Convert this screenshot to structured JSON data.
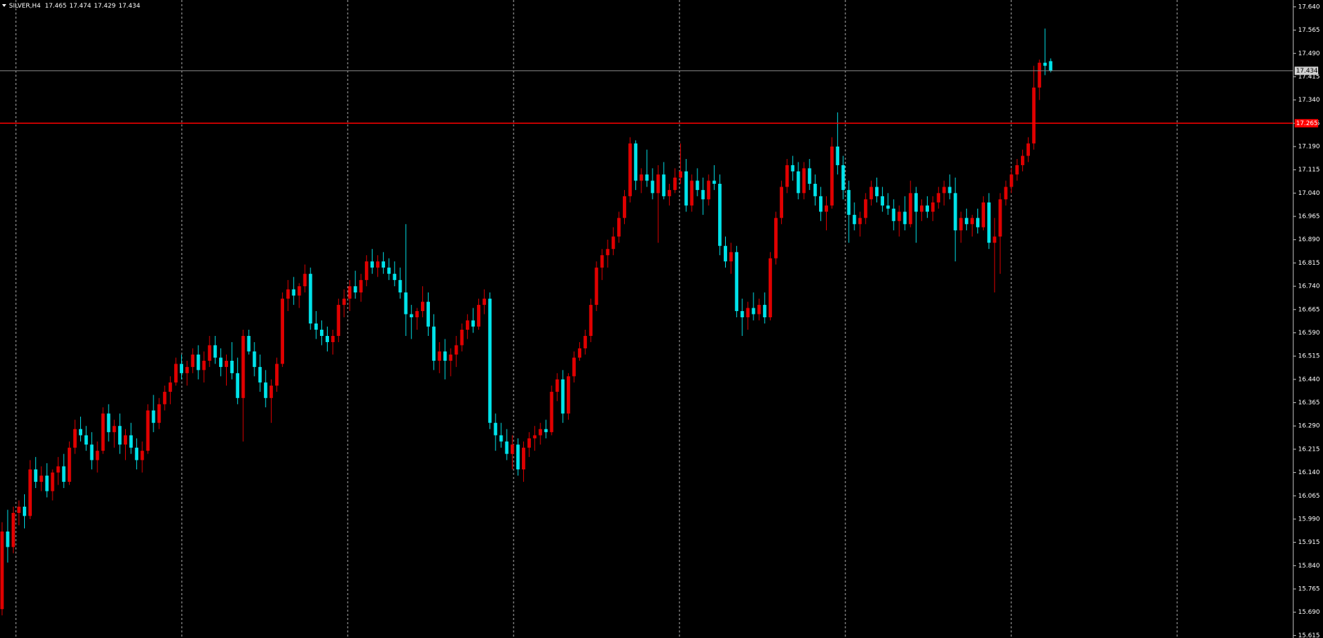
{
  "chart_data": {
    "type": "candlestick",
    "title": "SILVER,H4",
    "up_color": "#e00000",
    "down_color": "#00e3ea",
    "background": "#000000",
    "ylim": [
      15.607,
      17.662
    ],
    "yticks": [
      {
        "value": 17.64,
        "label": "17.640"
      },
      17.565,
      {
        "value": 17.49,
        "label": "17.490"
      },
      17.415,
      {
        "value": 17.34,
        "label": "17.340"
      },
      17.265,
      {
        "value": 17.19,
        "label": "17.190"
      },
      17.115,
      {
        "value": 17.04,
        "label": "17.040"
      },
      16.965,
      {
        "value": 16.89,
        "label": "16.890"
      },
      16.815,
      {
        "value": 16.74,
        "label": "16.740"
      },
      16.665,
      {
        "value": 16.59,
        "label": "16.590"
      },
      16.515,
      {
        "value": 16.44,
        "label": "16.440"
      },
      16.365,
      {
        "value": 16.29,
        "label": "16.290"
      },
      16.215,
      {
        "value": 16.14,
        "label": "16.140"
      },
      16.065,
      {
        "value": 15.99,
        "label": "15.990"
      },
      15.915,
      {
        "value": 15.84,
        "label": "15.840"
      },
      15.765,
      {
        "value": 15.69,
        "label": "15.690"
      },
      15.615
    ],
    "level_line": {
      "value": 17.265,
      "color": "#ff0000"
    },
    "candles": [
      [
        15.7,
        15.98,
        15.68,
        15.95
      ],
      [
        15.95,
        16.02,
        15.85,
        15.9
      ],
      [
        15.9,
        16.03,
        15.88,
        16.01
      ],
      [
        16.01,
        16.05,
        15.97,
        16.03
      ],
      [
        16.03,
        16.07,
        15.96,
        16.0
      ],
      [
        16.0,
        16.18,
        15.99,
        16.15
      ],
      [
        16.15,
        16.19,
        16.09,
        16.11
      ],
      [
        16.11,
        16.16,
        16.08,
        16.13
      ],
      [
        16.13,
        16.17,
        16.06,
        16.08
      ],
      [
        16.08,
        16.15,
        16.05,
        16.14
      ],
      [
        16.14,
        16.19,
        16.1,
        16.16
      ],
      [
        16.16,
        16.2,
        16.09,
        16.11
      ],
      [
        16.11,
        16.24,
        16.1,
        16.22
      ],
      [
        16.22,
        16.31,
        16.2,
        16.28
      ],
      [
        16.28,
        16.32,
        16.24,
        16.26
      ],
      [
        16.26,
        16.29,
        16.21,
        16.23
      ],
      [
        16.23,
        16.27,
        16.15,
        16.18
      ],
      [
        16.18,
        16.24,
        16.14,
        16.21
      ],
      [
        16.21,
        16.35,
        16.2,
        16.33
      ],
      [
        16.33,
        16.36,
        16.24,
        16.27
      ],
      [
        16.27,
        16.31,
        16.22,
        16.29
      ],
      [
        16.29,
        16.33,
        16.2,
        16.23
      ],
      [
        16.23,
        16.28,
        16.18,
        16.26
      ],
      [
        16.26,
        16.3,
        16.2,
        16.22
      ],
      [
        16.22,
        16.25,
        16.15,
        16.18
      ],
      [
        16.18,
        16.24,
        16.14,
        16.21
      ],
      [
        16.21,
        16.36,
        16.2,
        16.34
      ],
      [
        16.34,
        16.39,
        16.27,
        16.3
      ],
      [
        16.3,
        16.38,
        16.28,
        16.36
      ],
      [
        16.36,
        16.42,
        16.34,
        16.4
      ],
      [
        16.4,
        16.45,
        16.36,
        16.43
      ],
      [
        16.43,
        16.51,
        16.42,
        16.49
      ],
      [
        16.49,
        16.52,
        16.44,
        16.46
      ],
      [
        16.46,
        16.5,
        16.42,
        16.48
      ],
      [
        16.48,
        16.54,
        16.46,
        16.52
      ],
      [
        16.52,
        16.55,
        16.44,
        16.47
      ],
      [
        16.47,
        16.53,
        16.43,
        16.5
      ],
      [
        16.5,
        16.58,
        16.48,
        16.55
      ],
      [
        16.55,
        16.58,
        16.49,
        16.51
      ],
      [
        16.51,
        16.54,
        16.45,
        16.48
      ],
      [
        16.48,
        16.52,
        16.42,
        16.5
      ],
      [
        16.5,
        16.56,
        16.44,
        16.46
      ],
      [
        16.46,
        16.51,
        16.36,
        16.38
      ],
      [
        16.38,
        16.6,
        16.24,
        16.58
      ],
      [
        16.58,
        16.6,
        16.52,
        16.53
      ],
      [
        16.53,
        16.56,
        16.45,
        16.48
      ],
      [
        16.48,
        16.52,
        16.4,
        16.43
      ],
      [
        16.43,
        16.47,
        16.35,
        16.38
      ],
      [
        16.38,
        16.44,
        16.3,
        16.42
      ],
      [
        16.42,
        16.51,
        16.4,
        16.49
      ],
      [
        16.49,
        16.72,
        16.48,
        16.7
      ],
      [
        16.7,
        16.76,
        16.66,
        16.73
      ],
      [
        16.73,
        16.77,
        16.68,
        16.71
      ],
      [
        16.71,
        16.75,
        16.67,
        16.74
      ],
      [
        16.74,
        16.81,
        16.72,
        16.78
      ],
      [
        16.78,
        16.8,
        16.6,
        16.62
      ],
      [
        16.62,
        16.66,
        16.57,
        16.6
      ],
      [
        16.6,
        16.63,
        16.55,
        16.58
      ],
      [
        16.58,
        16.61,
        16.53,
        16.56
      ],
      [
        16.56,
        16.6,
        16.52,
        16.58
      ],
      [
        16.58,
        16.7,
        16.56,
        16.68
      ],
      [
        16.68,
        16.73,
        16.64,
        16.7
      ],
      [
        16.7,
        16.76,
        16.66,
        16.74
      ],
      [
        16.74,
        16.79,
        16.7,
        16.72
      ],
      [
        16.72,
        16.78,
        16.69,
        16.76
      ],
      [
        16.76,
        16.84,
        16.74,
        16.82
      ],
      [
        16.82,
        16.86,
        16.78,
        16.8
      ],
      [
        16.8,
        16.84,
        16.77,
        16.82
      ],
      [
        16.82,
        16.85,
        16.78,
        16.8
      ],
      [
        16.8,
        16.83,
        16.76,
        16.78
      ],
      [
        16.78,
        16.82,
        16.74,
        16.76
      ],
      [
        16.76,
        16.8,
        16.7,
        16.72
      ],
      [
        16.72,
        16.94,
        16.58,
        16.65
      ],
      [
        16.65,
        16.68,
        16.57,
        16.64
      ],
      [
        16.64,
        16.67,
        16.6,
        16.66
      ],
      [
        16.66,
        16.74,
        16.64,
        16.69
      ],
      [
        16.69,
        16.72,
        16.58,
        16.61
      ],
      [
        16.61,
        16.65,
        16.47,
        16.5
      ],
      [
        16.5,
        16.56,
        16.46,
        16.53
      ],
      [
        16.53,
        16.57,
        16.44,
        16.5
      ],
      [
        16.5,
        16.54,
        16.45,
        16.52
      ],
      [
        16.52,
        16.58,
        16.48,
        16.55
      ],
      [
        16.55,
        16.62,
        16.53,
        16.6
      ],
      [
        16.6,
        16.65,
        16.57,
        16.63
      ],
      [
        16.63,
        16.67,
        16.59,
        16.61
      ],
      [
        16.61,
        16.7,
        16.6,
        16.68
      ],
      [
        16.68,
        16.73,
        16.65,
        16.7
      ],
      [
        16.7,
        16.72,
        16.28,
        16.3
      ],
      [
        16.3,
        16.33,
        16.21,
        16.26
      ],
      [
        16.26,
        16.3,
        16.22,
        16.24
      ],
      [
        16.24,
        16.28,
        16.18,
        16.2
      ],
      [
        16.2,
        16.26,
        16.15,
        16.23
      ],
      [
        16.23,
        16.25,
        16.13,
        16.15
      ],
      [
        16.15,
        16.24,
        16.11,
        16.22
      ],
      [
        16.22,
        16.27,
        16.19,
        16.25
      ],
      [
        16.25,
        16.29,
        16.21,
        16.26
      ],
      [
        16.26,
        16.3,
        16.23,
        16.28
      ],
      [
        16.28,
        16.31,
        16.25,
        16.27
      ],
      [
        16.27,
        16.42,
        16.26,
        16.4
      ],
      [
        16.4,
        16.46,
        16.37,
        16.44
      ],
      [
        16.44,
        16.47,
        16.3,
        16.33
      ],
      [
        16.33,
        16.46,
        16.31,
        16.45
      ],
      [
        16.45,
        16.53,
        16.43,
        16.51
      ],
      [
        16.51,
        16.56,
        16.5,
        16.54
      ],
      [
        16.54,
        16.6,
        16.52,
        16.58
      ],
      [
        16.58,
        16.7,
        16.56,
        16.68
      ],
      [
        16.68,
        16.82,
        16.66,
        16.8
      ],
      [
        16.8,
        16.86,
        16.76,
        16.84
      ],
      [
        16.84,
        16.89,
        16.8,
        16.86
      ],
      [
        16.86,
        16.93,
        16.84,
        16.9
      ],
      [
        16.9,
        16.98,
        16.88,
        16.96
      ],
      [
        16.96,
        17.05,
        16.94,
        17.03
      ],
      [
        17.03,
        17.22,
        17.01,
        17.2
      ],
      [
        17.2,
        17.21,
        17.05,
        17.08
      ],
      [
        17.08,
        17.12,
        17.04,
        17.1
      ],
      [
        17.1,
        17.18,
        17.06,
        17.08
      ],
      [
        17.08,
        17.12,
        17.02,
        17.04
      ],
      [
        17.04,
        17.13,
        16.88,
        17.1
      ],
      [
        17.1,
        17.14,
        17.02,
        17.03
      ],
      [
        17.03,
        17.07,
        17.0,
        17.05
      ],
      [
        17.05,
        17.12,
        17.04,
        17.09
      ],
      [
        17.09,
        17.2,
        17.07,
        17.11
      ],
      [
        17.11,
        17.15,
        16.98,
        17.0
      ],
      [
        17.0,
        17.1,
        16.98,
        17.08
      ],
      [
        17.08,
        17.12,
        17.03,
        17.05
      ],
      [
        17.05,
        17.09,
        16.97,
        17.02
      ],
      [
        17.02,
        17.1,
        17.0,
        17.08
      ],
      [
        17.08,
        17.13,
        17.05,
        17.07
      ],
      [
        17.07,
        17.1,
        16.84,
        16.87
      ],
      [
        16.87,
        16.9,
        16.8,
        16.82
      ],
      [
        16.82,
        16.88,
        16.78,
        16.85
      ],
      [
        16.85,
        16.87,
        16.64,
        16.66
      ],
      [
        16.66,
        16.7,
        16.58,
        16.64
      ],
      [
        16.64,
        16.69,
        16.6,
        16.67
      ],
      [
        16.67,
        16.72,
        16.63,
        16.65
      ],
      [
        16.65,
        16.7,
        16.63,
        16.68
      ],
      [
        16.68,
        16.72,
        16.62,
        16.64
      ],
      [
        16.64,
        16.85,
        16.63,
        16.83
      ],
      [
        16.83,
        16.98,
        16.81,
        16.96
      ],
      [
        16.96,
        17.08,
        16.94,
        17.06
      ],
      [
        17.06,
        17.15,
        17.04,
        17.13
      ],
      [
        17.13,
        17.16,
        17.08,
        17.11
      ],
      [
        17.11,
        17.14,
        17.02,
        17.04
      ],
      [
        17.04,
        17.14,
        17.02,
        17.12
      ],
      [
        17.12,
        17.15,
        17.05,
        17.07
      ],
      [
        17.07,
        17.1,
        17.0,
        17.03
      ],
      [
        17.03,
        17.06,
        16.95,
        16.98
      ],
      [
        16.98,
        17.03,
        16.92,
        17.0
      ],
      [
        17.0,
        17.22,
        16.99,
        17.19
      ],
      [
        17.19,
        17.3,
        17.1,
        17.13
      ],
      [
        17.13,
        17.16,
        17.02,
        17.05
      ],
      [
        17.05,
        17.08,
        16.88,
        16.97
      ],
      [
        16.97,
        17.01,
        16.92,
        16.94
      ],
      [
        16.94,
        16.98,
        16.9,
        16.96
      ],
      [
        16.96,
        17.04,
        16.94,
        17.02
      ],
      [
        17.02,
        17.08,
        17.0,
        17.06
      ],
      [
        17.06,
        17.09,
        17.01,
        17.03
      ],
      [
        17.03,
        17.06,
        16.98,
        17.0
      ],
      [
        17.0,
        17.04,
        16.97,
        16.99
      ],
      [
        16.99,
        17.02,
        16.92,
        16.95
      ],
      [
        16.95,
        17.0,
        16.9,
        16.98
      ],
      [
        16.98,
        17.03,
        16.92,
        16.94
      ],
      [
        16.94,
        17.08,
        16.93,
        17.04
      ],
      [
        17.04,
        17.06,
        16.88,
        16.98
      ],
      [
        16.98,
        17.02,
        16.95,
        17.0
      ],
      [
        17.0,
        17.03,
        16.96,
        16.98
      ],
      [
        16.98,
        17.03,
        16.95,
        17.01
      ],
      [
        17.01,
        17.06,
        16.99,
        17.04
      ],
      [
        17.04,
        17.08,
        17.0,
        17.06
      ],
      [
        17.06,
        17.1,
        17.02,
        17.04
      ],
      [
        17.04,
        17.09,
        16.82,
        16.92
      ],
      [
        16.92,
        16.98,
        16.88,
        16.96
      ],
      [
        16.96,
        16.99,
        16.92,
        16.94
      ],
      [
        16.94,
        16.97,
        16.9,
        16.96
      ],
      [
        16.96,
        16.99,
        16.91,
        16.93
      ],
      [
        16.93,
        17.03,
        16.92,
        17.01
      ],
      [
        17.01,
        17.04,
        16.86,
        16.88
      ],
      [
        16.88,
        16.96,
        16.72,
        16.9
      ],
      [
        16.9,
        17.04,
        16.78,
        17.02
      ],
      [
        17.02,
        17.08,
        17.0,
        17.06
      ],
      [
        17.06,
        17.12,
        17.04,
        17.1
      ],
      [
        17.1,
        17.15,
        17.08,
        17.13
      ],
      [
        17.13,
        17.18,
        17.11,
        17.16
      ],
      [
        17.16,
        17.22,
        17.14,
        17.2
      ],
      [
        17.2,
        17.45,
        17.18,
        17.38
      ],
      [
        17.38,
        17.47,
        17.34,
        17.46
      ],
      [
        17.46,
        17.57,
        17.42,
        17.45
      ],
      [
        17.465,
        17.474,
        17.429,
        17.434
      ]
    ]
  }
}
